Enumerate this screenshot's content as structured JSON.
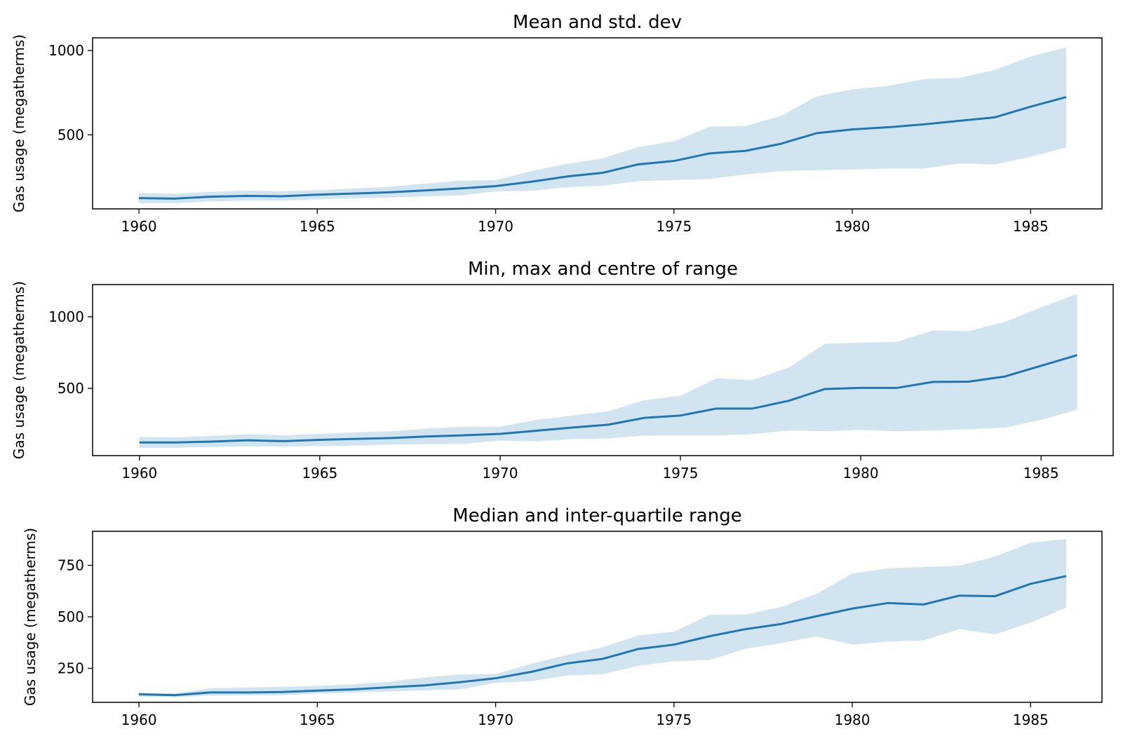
{
  "chart_data": [
    {
      "type": "area",
      "title": "Mean and std. dev",
      "ylabel": "Gas usage (megatherms)",
      "xlabel": "",
      "x": [
        1960,
        1961,
        1962,
        1963,
        1964,
        1965,
        1966,
        1967,
        1968,
        1969,
        1970,
        1971,
        1972,
        1973,
        1974,
        1975,
        1976,
        1977,
        1978,
        1979,
        1980,
        1981,
        1982,
        1983,
        1984,
        1985,
        1986
      ],
      "series": [
        {
          "values": [
            125,
            122,
            133,
            138,
            136,
            145,
            152,
            159,
            170,
            182,
            196,
            222,
            253,
            275,
            325,
            345,
            390,
            405,
            447,
            510,
            532,
            545,
            562,
            583,
            604,
            667,
            724
          ],
          "lower": [
            95,
            95,
            105,
            110,
            110,
            118,
            122,
            128,
            135,
            140,
            165,
            168,
            190,
            198,
            225,
            232,
            238,
            265,
            285,
            290,
            295,
            300,
            300,
            330,
            325,
            370,
            425
          ],
          "upper": [
            155,
            150,
            162,
            170,
            165,
            172,
            182,
            192,
            210,
            228,
            232,
            285,
            328,
            360,
            428,
            462,
            548,
            552,
            612,
            728,
            770,
            790,
            830,
            838,
            885,
            965,
            1018
          ]
        }
      ],
      "xticks": [
        1960,
        1965,
        1970,
        1975,
        1980,
        1985
      ],
      "yticks": [
        500,
        1000
      ],
      "xlim": [
        1958.7,
        1987.0
      ],
      "ylim": [
        61,
        1075
      ],
      "color": "#1f77b4",
      "band_color": "#1f77b4"
    },
    {
      "type": "area",
      "title": "Min, max and centre of range",
      "ylabel": "Gas usage (megatherms)",
      "xlabel": "",
      "x": [
        1960,
        1961,
        1962,
        1963,
        1964,
        1965,
        1966,
        1967,
        1968,
        1969,
        1970,
        1971,
        1972,
        1973,
        1974,
        1975,
        1976,
        1977,
        1978,
        1979,
        1980,
        1981,
        1982,
        1983,
        1984,
        1985,
        1986
      ],
      "series": [
        {
          "values": [
            122,
            122,
            128,
            137,
            131,
            140,
            147,
            153,
            164,
            172,
            182,
            204,
            226,
            246,
            294,
            310,
            359,
            359,
            413,
            495,
            503,
            503,
            545,
            547,
            583,
            658,
            732
          ],
          "lower": [
            85,
            85,
            90,
            95,
            92,
            98,
            100,
            107,
            110,
            112,
            135,
            130,
            145,
            150,
            170,
            170,
            170,
            180,
            205,
            200,
            210,
            200,
            205,
            215,
            225,
            280,
            350
          ],
          "upper": [
            160,
            158,
            168,
            180,
            172,
            182,
            192,
            200,
            220,
            232,
            232,
            280,
            310,
            340,
            418,
            448,
            570,
            558,
            645,
            810,
            820,
            825,
            905,
            900,
            965,
            1065,
            1160
          ]
        }
      ],
      "xticks": [
        1960,
        1965,
        1970,
        1975,
        1980,
        1985
      ],
      "yticks": [
        500,
        1000
      ],
      "xlim": [
        1958.7,
        1987.0
      ],
      "ylim": [
        30,
        1225
      ],
      "color": "#1f77b4",
      "band_color": "#1f77b4"
    },
    {
      "type": "area",
      "title": "Median and inter-quartile range",
      "ylabel": "Gas usage (megatherms)",
      "xlabel": "",
      "x": [
        1960,
        1961,
        1962,
        1963,
        1964,
        1965,
        1966,
        1967,
        1968,
        1969,
        1970,
        1971,
        1972,
        1973,
        1974,
        1975,
        1976,
        1977,
        1978,
        1979,
        1980,
        1981,
        1982,
        1983,
        1984,
        1985,
        1986
      ],
      "series": [
        {
          "values": [
            124,
            120,
            133,
            133,
            135,
            142,
            148,
            158,
            167,
            183,
            202,
            233,
            274,
            296,
            344,
            365,
            406,
            440,
            465,
            503,
            540,
            567,
            560,
            603,
            600,
            660,
            698
          ],
          "lower": [
            113,
            110,
            118,
            118,
            120,
            128,
            132,
            138,
            143,
            148,
            180,
            187,
            215,
            222,
            262,
            285,
            290,
            345,
            372,
            405,
            365,
            380,
            385,
            440,
            415,
            472,
            545
          ],
          "upper": [
            132,
            128,
            153,
            157,
            160,
            165,
            172,
            185,
            205,
            220,
            222,
            272,
            315,
            352,
            410,
            428,
            510,
            510,
            548,
            612,
            710,
            735,
            742,
            748,
            792,
            860,
            878
          ]
        }
      ],
      "xticks": [
        1960,
        1965,
        1970,
        1975,
        1980,
        1985
      ],
      "yticks": [
        250,
        500,
        750
      ],
      "xlim": [
        1958.7,
        1987.0
      ],
      "ylim": [
        85,
        915
      ],
      "color": "#1f77b4",
      "band_color": "#1f77b4"
    }
  ]
}
